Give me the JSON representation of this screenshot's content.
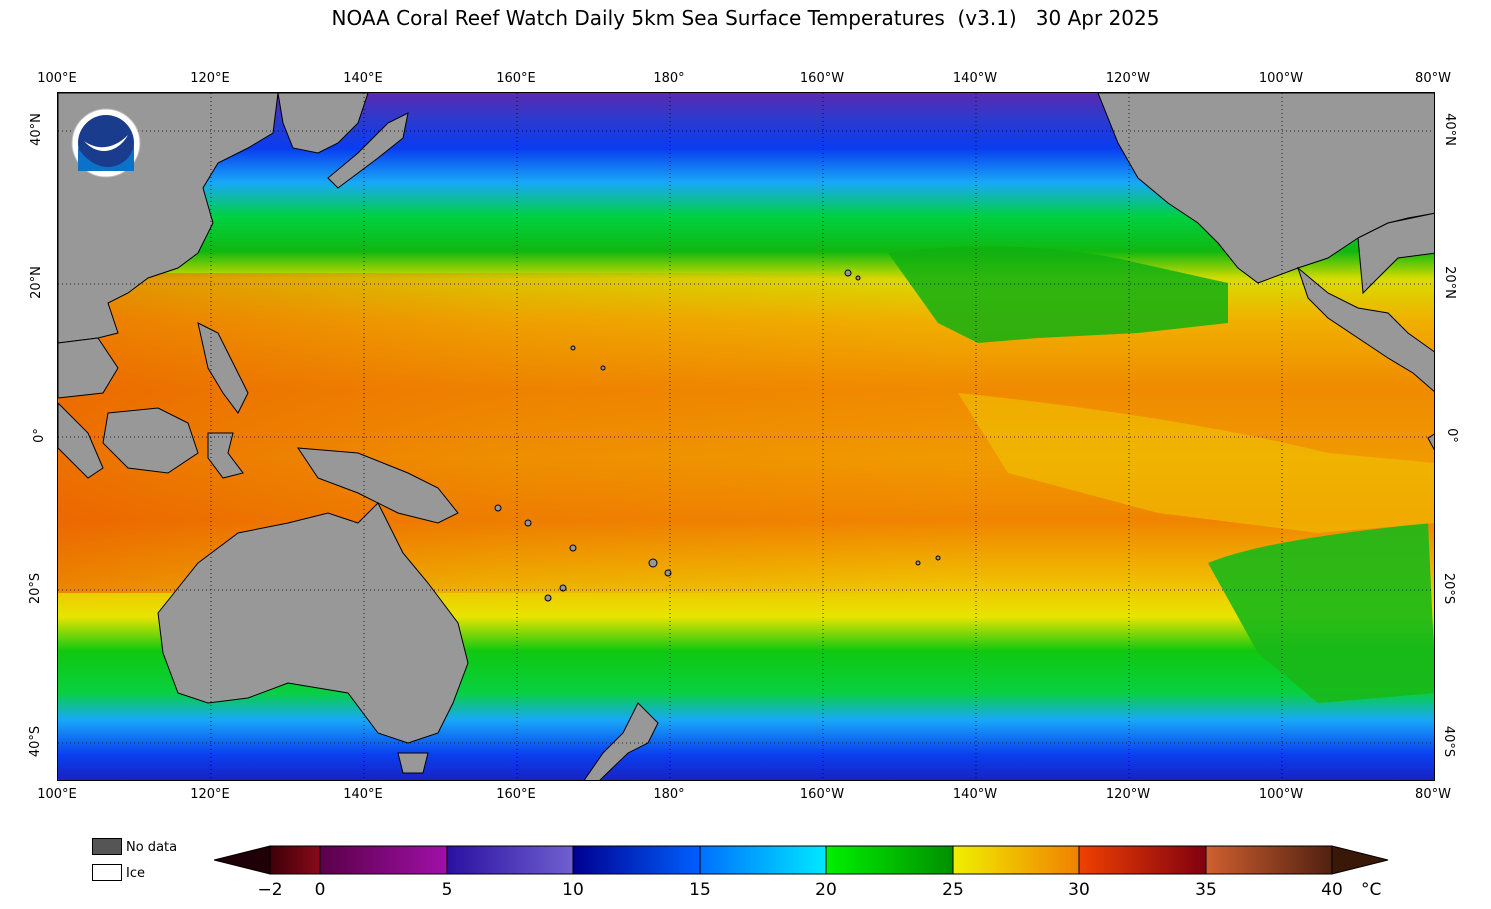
{
  "title": "NOAA Coral Reef Watch Daily 5km Sea Surface Temperatures  (v3.1)   30 Apr 2025",
  "lon_labels": [
    "100°E",
    "120°E",
    "140°E",
    "160°E",
    "180°",
    "160°W",
    "140°W",
    "120°W",
    "100°W",
    "80°W"
  ],
  "lat_labels": [
    "40°N",
    "20°N",
    "0°",
    "20°S",
    "40°S"
  ],
  "legend": {
    "nodata_label": "No data",
    "ice_label": "Ice"
  },
  "colorbar": {
    "ticks": [
      "−2",
      "0",
      "5",
      "10",
      "15",
      "20",
      "25",
      "30",
      "35",
      "40"
    ],
    "unit": "°C"
  },
  "colors": {
    "land": "#989898",
    "nodata": "#555555",
    "ice": "#ffffff"
  }
}
